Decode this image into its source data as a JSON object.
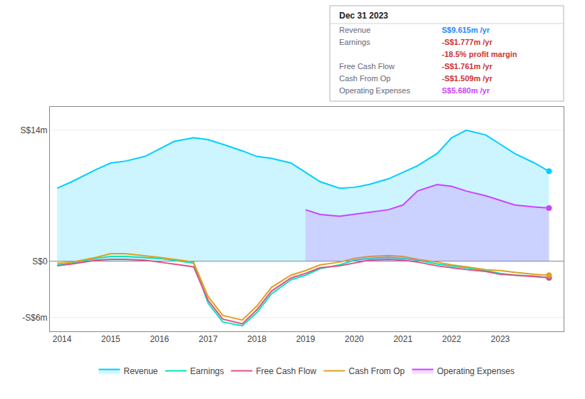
{
  "chart_data": {
    "type": "area",
    "x": [
      2013.9,
      2014.2,
      2014.7,
      2015.0,
      2015.3,
      2015.7,
      2016.0,
      2016.3,
      2016.7,
      2017.0,
      2017.3,
      2017.7,
      2018.0,
      2018.3,
      2018.7,
      2019.0,
      2019.3,
      2019.7,
      2020.0,
      2020.3,
      2020.7,
      2021.0,
      2021.3,
      2021.7,
      2022.0,
      2022.3,
      2022.7,
      2023.0,
      2023.3,
      2023.7,
      2024.0
    ],
    "series": [
      {
        "name": "Revenue",
        "color": "#00cfff",
        "type": "area",
        "values": [
          7.8,
          8.5,
          9.8,
          10.5,
          10.7,
          11.2,
          12.0,
          12.8,
          13.2,
          13.0,
          12.5,
          11.8,
          11.2,
          11.0,
          10.5,
          9.5,
          8.5,
          7.8,
          7.9,
          8.2,
          8.8,
          9.5,
          10.2,
          11.5,
          13.2,
          14.0,
          13.5,
          12.5,
          11.5,
          10.5,
          9.615
        ]
      },
      {
        "name": "Earnings",
        "color": "#00e5c0",
        "type": "line",
        "values": [
          -0.4,
          -0.2,
          0.3,
          0.5,
          0.5,
          0.4,
          0.3,
          0.1,
          -0.2,
          -4.5,
          -6.5,
          -6.9,
          -5.5,
          -3.5,
          -2.0,
          -1.5,
          -0.8,
          -0.4,
          0.1,
          0.3,
          0.4,
          0.3,
          0.1,
          -0.3,
          -0.5,
          -0.7,
          -1.0,
          -1.3,
          -1.5,
          -1.6,
          -1.777
        ]
      },
      {
        "name": "Free Cash Flow",
        "color": "#e05080",
        "type": "line",
        "values": [
          -0.5,
          -0.3,
          0.1,
          0.2,
          0.2,
          0.1,
          -0.1,
          -0.3,
          -0.6,
          -4.2,
          -6.2,
          -6.7,
          -5.2,
          -3.2,
          -1.8,
          -1.3,
          -0.7,
          -0.5,
          -0.2,
          0.1,
          0.2,
          0.1,
          -0.1,
          -0.5,
          -0.7,
          -0.9,
          -1.1,
          -1.4,
          -1.5,
          -1.65,
          -1.761
        ]
      },
      {
        "name": "Cash From Op",
        "color": "#e0a020",
        "type": "line",
        "values": [
          -0.2,
          -0.1,
          0.4,
          0.8,
          0.8,
          0.6,
          0.4,
          0.2,
          -0.1,
          -3.8,
          -5.8,
          -6.3,
          -4.8,
          -2.8,
          -1.5,
          -1.0,
          -0.4,
          -0.1,
          0.3,
          0.5,
          0.6,
          0.5,
          0.2,
          -0.1,
          -0.4,
          -0.6,
          -0.9,
          -1.0,
          -1.2,
          -1.4,
          -1.509
        ]
      },
      {
        "name": "Operating Expenses",
        "color": "#cc44ff",
        "type": "area",
        "values": [
          null,
          null,
          null,
          null,
          null,
          null,
          null,
          null,
          null,
          null,
          null,
          null,
          null,
          null,
          null,
          5.5,
          5.0,
          4.8,
          5.0,
          5.2,
          5.5,
          6.0,
          7.5,
          8.2,
          8.0,
          7.5,
          7.0,
          6.5,
          6.0,
          5.8,
          5.68
        ]
      }
    ],
    "xlim": [
      2013.75,
      2024.3
    ],
    "xticks": [
      2014,
      2015,
      2016,
      2017,
      2018,
      2019,
      2020,
      2021,
      2022,
      2023
    ],
    "ylim": [
      -7.5,
      16.5
    ],
    "yticks": [
      {
        "value": -6,
        "label": "-S$6m"
      },
      {
        "value": 0,
        "label": "S$0"
      },
      {
        "value": 14,
        "label": "S$14m"
      }
    ],
    "grid": "y",
    "legend": "bottom",
    "annotations": [
      {
        "text": "Dec 31 2023"
      },
      {
        "label": "Revenue",
        "text": "S$9.615m /yr",
        "color": "#2288ff"
      },
      {
        "label": "Earnings",
        "text": "-S$1.777m /yr",
        "color": "#cc3333"
      },
      {
        "text": "-18.5% profit margin",
        "color": "#cc3333"
      },
      {
        "label": "Free Cash Flow",
        "text": "-S$1.761m /yr",
        "color": "#cc3333"
      },
      {
        "label": "Cash From Op",
        "text": "-S$1.509m /yr",
        "color": "#cc3333"
      },
      {
        "label": "Operating Expenses",
        "text": "S$5.680m /yr",
        "color": "#cc44ff"
      }
    ]
  }
}
